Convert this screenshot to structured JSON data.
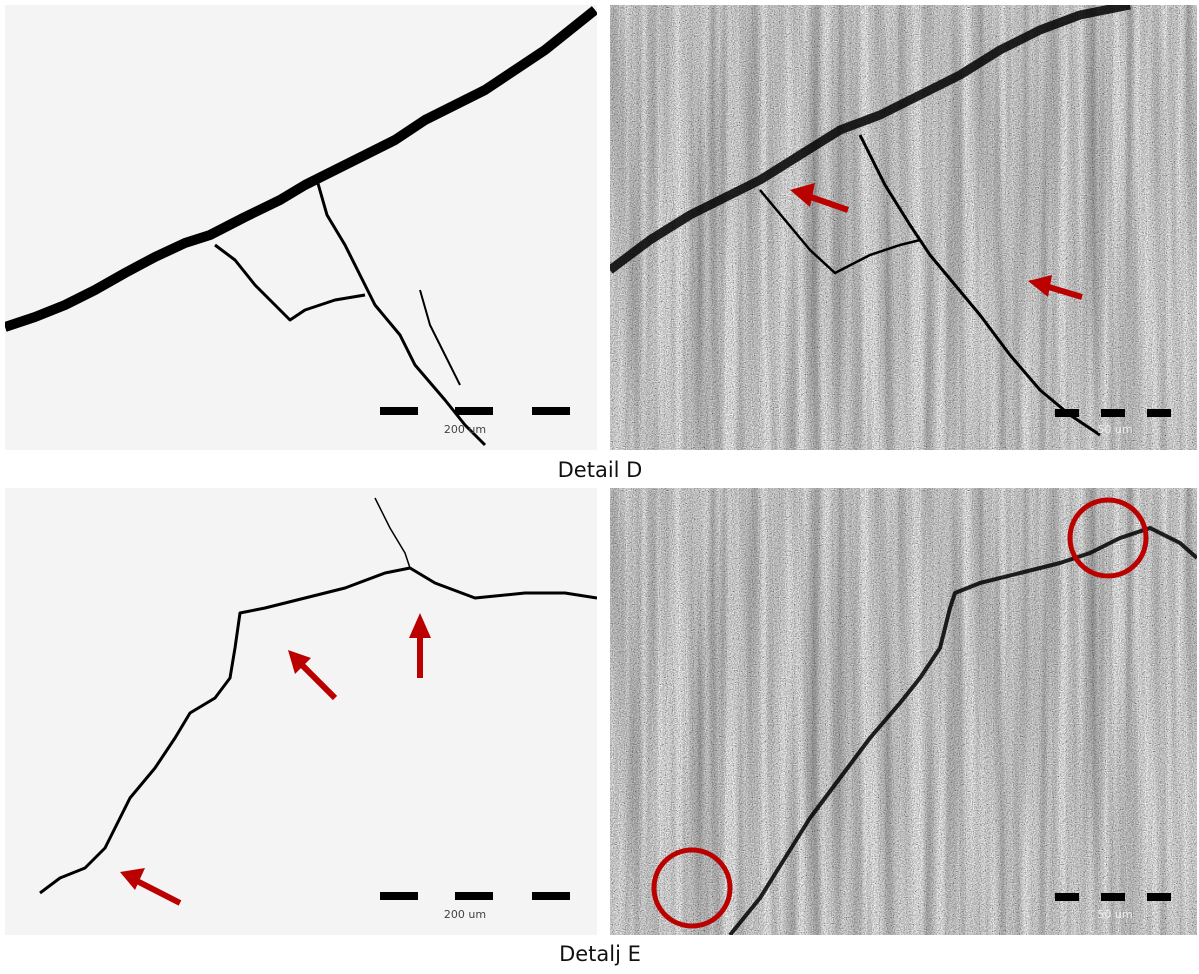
{
  "figures": [
    {
      "caption": "Detail D",
      "panels": [
        {
          "scale_label": "200 um"
        },
        {
          "scale_label": "50 um"
        }
      ]
    },
    {
      "caption": "Detalj E",
      "panels": [
        {
          "scale_label": "200 um"
        },
        {
          "scale_label": "50 um"
        }
      ]
    }
  ]
}
